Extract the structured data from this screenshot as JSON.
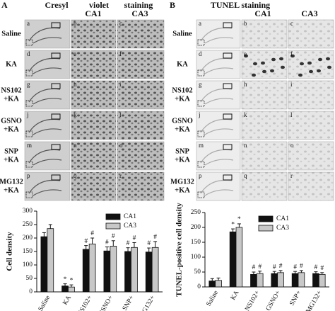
{
  "figure": {
    "A": {
      "label": "A",
      "heading": [
        "Cresyl",
        "violet",
        "staining"
      ],
      "columns": [
        "CA1",
        "CA3"
      ],
      "rows": [
        [
          "Saline"
        ],
        [
          "KA"
        ],
        [
          "NS102",
          "+KA"
        ],
        [
          "GSNO",
          "+KA"
        ],
        [
          "SNP",
          "+KA"
        ],
        [
          "MG132",
          "+KA"
        ]
      ],
      "images": [
        "a",
        "b",
        "c",
        "d",
        "e",
        "f",
        "g",
        "h",
        "i",
        "j",
        "k",
        "l",
        "m",
        "n",
        "o",
        "p",
        "q",
        "r"
      ]
    },
    "B": {
      "label": "B",
      "heading": [
        "TUNEL staining"
      ],
      "columns": [
        "CA1",
        "CA3"
      ],
      "rows": [
        [
          "Saline"
        ],
        [
          "KA"
        ],
        [
          "NS102",
          "+KA"
        ],
        [
          "GSNO",
          "+KA"
        ],
        [
          "SNP",
          "+KA"
        ],
        [
          "MG132",
          "+KA"
        ]
      ],
      "images": [
        "a",
        "b",
        "c",
        "d",
        "e",
        "f",
        "g",
        "h",
        "i",
        "j",
        "k",
        "l",
        "m",
        "n",
        "o",
        "p",
        "q",
        "r"
      ]
    }
  },
  "chart_data": [
    {
      "type": "bar",
      "ylabel": "Cell density",
      "categories": [
        "Saline",
        "KA",
        "NS102+",
        "GSNO+",
        "SNP+",
        "MG132+"
      ],
      "series": [
        {
          "name": "CA1",
          "color": "#111111",
          "values": [
            205,
            22,
            158,
            152,
            150,
            148
          ],
          "errors": [
            15,
            8,
            14,
            15,
            14,
            15
          ],
          "annotations": [
            null,
            "*",
            "#",
            "#",
            "#",
            "#"
          ]
        },
        {
          "name": "CA3",
          "color": "#c8c8c8",
          "values": [
            235,
            18,
            178,
            170,
            165,
            165
          ],
          "errors": [
            15,
            8,
            22,
            20,
            18,
            22
          ],
          "annotations": [
            null,
            "*",
            "#",
            "#",
            "#",
            "#"
          ]
        }
      ],
      "ylim": [
        0,
        300
      ],
      "yticks": [
        0,
        50,
        100,
        150,
        200,
        250,
        300
      ],
      "legend": "upper right"
    },
    {
      "type": "bar",
      "ylabel": "TUNEL-positive cell density",
      "categories": [
        "Saline",
        "KA",
        "NS102+",
        "GSNO+",
        "SNP+",
        "MG132+"
      ],
      "series": [
        {
          "name": "CA1",
          "color": "#111111",
          "values": [
            20,
            185,
            42,
            45,
            45,
            45
          ],
          "errors": [
            8,
            10,
            8,
            7,
            7,
            6
          ],
          "annotations": [
            null,
            "*",
            "#",
            "#",
            "#",
            "#"
          ]
        },
        {
          "name": "CA3",
          "color": "#c8c8c8",
          "values": [
            22,
            200,
            45,
            48,
            48,
            42
          ],
          "errors": [
            8,
            12,
            8,
            7,
            7,
            6
          ],
          "annotations": [
            null,
            "*",
            "#",
            "#",
            "#",
            "#"
          ]
        }
      ],
      "ylim": [
        0,
        250
      ],
      "yticks": [
        0,
        50,
        100,
        150,
        200,
        250
      ],
      "legend": "upper right"
    }
  ]
}
